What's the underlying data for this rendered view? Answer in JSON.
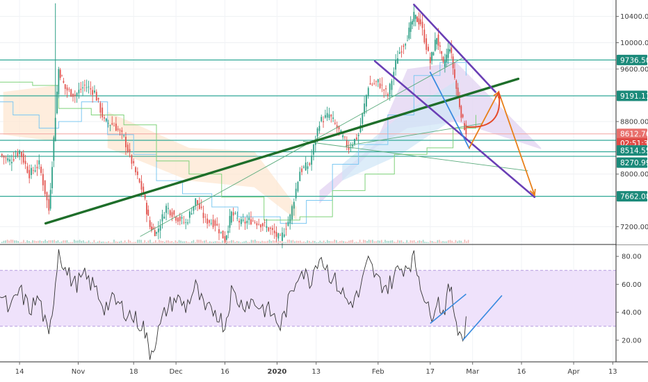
{
  "chart_data": [
    {
      "type": "line",
      "title": "",
      "xlabel": "",
      "ylabel": "",
      "x_tick_labels": [
        {
          "label": "14",
          "date": "2019-10-14"
        },
        {
          "label": "Nov",
          "date": "2019-11-01"
        },
        {
          "label": "18",
          "date": "2019-11-18"
        },
        {
          "label": "Dec",
          "date": "2019-12-01"
        },
        {
          "label": "16",
          "date": "2019-12-16"
        },
        {
          "label": "2020",
          "date": "2020-01-01"
        },
        {
          "label": "13",
          "date": "2020-01-13"
        },
        {
          "label": "Feb",
          "date": "2020-02-01"
        },
        {
          "label": "17",
          "date": "2020-02-17"
        },
        {
          "label": "Mar",
          "date": "2020-03-01"
        },
        {
          "label": "16",
          "date": "2020-03-16"
        },
        {
          "label": "Apr",
          "date": "2020-04-01"
        },
        {
          "label": "13",
          "date": "2020-04-13"
        }
      ],
      "xlim": [
        "2019-10-08",
        "2020-04-14"
      ],
      "price_axis": {
        "ylim": [
          6950,
          10650
        ],
        "ticks": [
          "10400.00",
          "10000.00",
          "9600.00",
          "8800.00",
          "8000.00",
          "7200.00"
        ],
        "tick_values": [
          10400,
          10000,
          9600,
          8800,
          8000,
          7200
        ],
        "labels": [
          {
            "text": "9736.50",
            "value": 9736.5,
            "color": "#1b8a7a"
          },
          {
            "text": "9191.11",
            "value": 9191.11,
            "color": "#1b8a7a"
          },
          {
            "text": "8612.76",
            "value": 8612.76,
            "color": "#e8716d"
          },
          {
            "text": "02:51:38",
            "value": 8470,
            "color": "#e04a45"
          },
          {
            "text": "8514.55",
            "value": 8360,
            "color": "#1b8a7a"
          },
          {
            "text": "8270.99",
            "value": 8175,
            "color": "#1b8a7a"
          },
          {
            "text": "7662.08",
            "value": 7662.08,
            "color": "#1b8a7a"
          }
        ],
        "horizontal_levels": [
          9736.5,
          9191.11,
          8514.55,
          8270.99,
          7662.08,
          8340
        ]
      },
      "series": [
        {
          "color": "#3a3a3a",
          "points": [
            [
              "2019-10-08",
              8300
            ],
            [
              "2019-10-11",
              8200
            ],
            [
              "2019-10-14",
              8350
            ],
            [
              "2019-10-17",
              8000
            ],
            [
              "2019-10-20",
              8150
            ],
            [
              "2019-10-23",
              7450
            ],
            [
              "2019-10-25",
              8900
            ],
            [
              "2019-10-26",
              9600
            ],
            [
              "2019-10-28",
              9300
            ],
            [
              "2019-10-31",
              9200
            ],
            [
              "2019-11-03",
              9350
            ],
            [
              "2019-11-06",
              9250
            ],
            [
              "2019-11-09",
              8800
            ],
            [
              "2019-11-12",
              8750
            ],
            [
              "2019-11-15",
              8550
            ],
            [
              "2019-11-18",
              8100
            ],
            [
              "2019-11-21",
              7700
            ],
            [
              "2019-11-23",
              7200
            ],
            [
              "2019-11-25",
              7100
            ],
            [
              "2019-11-28",
              7500
            ],
            [
              "2019-12-01",
              7350
            ],
            [
              "2019-12-04",
              7250
            ],
            [
              "2019-12-07",
              7600
            ],
            [
              "2019-12-10",
              7300
            ],
            [
              "2019-12-13",
              7250
            ],
            [
              "2019-12-16",
              7000
            ],
            [
              "2019-12-18",
              7400
            ],
            [
              "2019-12-21",
              7250
            ],
            [
              "2019-12-24",
              7300
            ],
            [
              "2019-12-27",
              7250
            ],
            [
              "2019-12-30",
              7150
            ],
            [
              "2020-01-02",
              7000
            ],
            [
              "2020-01-05",
              7350
            ],
            [
              "2020-01-08",
              8050
            ],
            [
              "2020-01-11",
              8150
            ],
            [
              "2020-01-14",
              8800
            ],
            [
              "2020-01-17",
              8900
            ],
            [
              "2020-01-20",
              8650
            ],
            [
              "2020-01-23",
              8400
            ],
            [
              "2020-01-26",
              8600
            ],
            [
              "2020-01-29",
              9350
            ],
            [
              "2020-02-01",
              9400
            ],
            [
              "2020-02-04",
              9200
            ],
            [
              "2020-02-07",
              9800
            ],
            [
              "2020-02-10",
              10100
            ],
            [
              "2020-02-12",
              10400
            ],
            [
              "2020-02-14",
              10300
            ],
            [
              "2020-02-17",
              9700
            ],
            [
              "2020-02-19",
              10100
            ],
            [
              "2020-02-21",
              9650
            ],
            [
              "2020-02-23",
              9950
            ],
            [
              "2020-02-25",
              9300
            ],
            [
              "2020-02-27",
              8800
            ],
            [
              "2020-02-28",
              8650
            ]
          ]
        }
      ],
      "indicator_lines": [
        {
          "name": "",
          "color": "#1e6e2a",
          "points": [
            [
              "2019-10-22",
              7250
            ],
            [
              "2020-03-15",
              9450
            ]
          ]
        },
        {
          "name": "",
          "color": "#6a3fb5",
          "points": [
            [
              "2020-02-12",
              10580
            ],
            [
              "2020-03-08",
              9250
            ]
          ]
        },
        {
          "name": "",
          "color": "#6a3fb5",
          "points": [
            [
              "2020-01-31",
              9720
            ],
            [
              "2020-03-20",
              7650
            ]
          ]
        },
        {
          "name": "",
          "color": "#3a8be0",
          "points": [
            [
              "2020-02-17",
              9550
            ],
            [
              "2020-02-29",
              8390
            ]
          ]
        },
        {
          "name": "",
          "color": "#e8801a",
          "points": [
            [
              "2020-02-29",
              8400
            ],
            [
              "2020-03-09",
              9250
            ],
            [
              "2020-03-20",
              7680
            ]
          ]
        }
      ]
    },
    {
      "type": "line",
      "title": "",
      "ylim": [
        5,
        88
      ],
      "ticks": [
        "80.00",
        "60.00",
        "40.00",
        "20.00"
      ],
      "tick_values": [
        80,
        60,
        40,
        20
      ],
      "band": [
        30,
        70
      ],
      "series": [
        {
          "color": "#3a3a3a",
          "points": [
            [
              "2019-10-08",
              54
            ],
            [
              "2019-10-11",
              40
            ],
            [
              "2019-10-14",
              56
            ],
            [
              "2019-10-17",
              42
            ],
            [
              "2019-10-20",
              50
            ],
            [
              "2019-10-23",
              20
            ],
            [
              "2019-10-25",
              62
            ],
            [
              "2019-10-26",
              86
            ],
            [
              "2019-10-28",
              70
            ],
            [
              "2019-10-31",
              60
            ],
            [
              "2019-11-03",
              65
            ],
            [
              "2019-11-06",
              58
            ],
            [
              "2019-11-09",
              44
            ],
            [
              "2019-11-12",
              48
            ],
            [
              "2019-11-15",
              42
            ],
            [
              "2019-11-18",
              36
            ],
            [
              "2019-11-21",
              30
            ],
            [
              "2019-11-23",
              10
            ],
            [
              "2019-11-25",
              22
            ],
            [
              "2019-11-28",
              42
            ],
            [
              "2019-12-01",
              50
            ],
            [
              "2019-12-04",
              44
            ],
            [
              "2019-12-07",
              58
            ],
            [
              "2019-12-10",
              40
            ],
            [
              "2019-12-13",
              42
            ],
            [
              "2019-12-16",
              30
            ],
            [
              "2019-12-18",
              55
            ],
            [
              "2019-12-21",
              46
            ],
            [
              "2019-12-24",
              48
            ],
            [
              "2019-12-27",
              44
            ],
            [
              "2019-12-30",
              40
            ],
            [
              "2020-01-02",
              30
            ],
            [
              "2020-01-05",
              50
            ],
            [
              "2020-01-08",
              72
            ],
            [
              "2020-01-11",
              62
            ],
            [
              "2020-01-14",
              82
            ],
            [
              "2020-01-17",
              68
            ],
            [
              "2020-01-20",
              58
            ],
            [
              "2020-01-23",
              46
            ],
            [
              "2020-01-26",
              52
            ],
            [
              "2020-01-29",
              76
            ],
            [
              "2020-02-01",
              62
            ],
            [
              "2020-02-04",
              58
            ],
            [
              "2020-02-07",
              70
            ],
            [
              "2020-02-10",
              74
            ],
            [
              "2020-02-12",
              78
            ],
            [
              "2020-02-14",
              62
            ],
            [
              "2020-02-17",
              36
            ],
            [
              "2020-02-19",
              50
            ],
            [
              "2020-02-21",
              40
            ],
            [
              "2020-02-23",
              58
            ],
            [
              "2020-02-25",
              34
            ],
            [
              "2020-02-27",
              20
            ],
            [
              "2020-02-28",
              34
            ]
          ]
        }
      ],
      "indicator_lines": [
        {
          "name": "",
          "color": "#3a8be0",
          "points": [
            [
              "2020-02-17",
              32
            ],
            [
              "2020-02-28",
              53
            ]
          ]
        },
        {
          "name": "",
          "color": "#3a8be0",
          "points": [
            [
              "2020-02-27",
              20
            ],
            [
              "2020-03-10",
              52
            ]
          ]
        }
      ]
    }
  ]
}
